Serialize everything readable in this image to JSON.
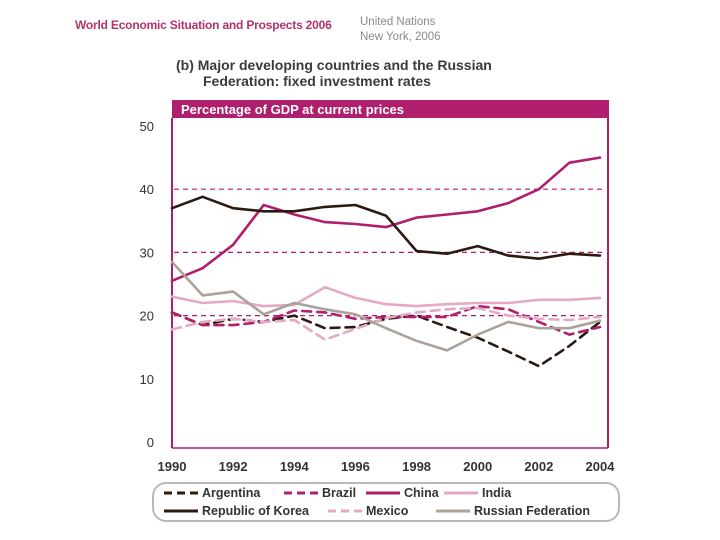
{
  "header": {
    "publication": "World Economic Situation and Prospects 2006",
    "org_line1": "United Nations",
    "org_line2": "New York, 2006"
  },
  "chart_data": {
    "type": "line",
    "title_line1": "(b) Major developing countries and the Russian",
    "title_line2": "Federation: fixed investment rates",
    "subtitle": "Percentage of GDP at current prices",
    "xlabel": "",
    "ylabel": "",
    "ylim": [
      0,
      50
    ],
    "xlim": [
      1990,
      2004
    ],
    "yticks": [
      "0",
      "10",
      "20",
      "30",
      "40",
      "50"
    ],
    "xticks": [
      "1990",
      "1992",
      "1994",
      "1996",
      "1998",
      "2000",
      "2002",
      "2004"
    ],
    "gridlines": [
      20,
      30,
      40
    ],
    "x": [
      1990,
      1991,
      1992,
      1993,
      1994,
      1995,
      1996,
      1997,
      1998,
      1999,
      2000,
      2001,
      2002,
      2003,
      2004
    ],
    "series": [
      {
        "name": "Argentina",
        "color": "#2b1a12",
        "style": "dashed",
        "values": [
          20.5,
          18.5,
          19.5,
          19.0,
          20.0,
          18.0,
          18.2,
          19.5,
          20.0,
          18.2,
          16.5,
          14.3,
          12.0,
          15.2,
          19.0
        ]
      },
      {
        "name": "Brazil",
        "color": "#b01e6e",
        "style": "dashed",
        "values": [
          20.5,
          18.5,
          18.5,
          19.0,
          20.8,
          20.5,
          19.5,
          19.8,
          19.8,
          19.8,
          21.5,
          21.0,
          19.0,
          17.0,
          18.2
        ]
      },
      {
        "name": "China",
        "color": "#b01e6e",
        "style": "solid",
        "values": [
          25.5,
          27.5,
          31.2,
          37.5,
          36.0,
          34.8,
          34.5,
          34.0,
          35.5,
          36.0,
          36.5,
          37.8,
          40.0,
          44.2,
          45.0
        ]
      },
      {
        "name": "India",
        "color": "#e6a9c4",
        "style": "solid",
        "values": [
          23.0,
          22.0,
          22.3,
          21.5,
          21.7,
          24.5,
          22.8,
          21.8,
          21.5,
          21.8,
          22.0,
          22.0,
          22.5,
          22.5,
          22.8
        ]
      },
      {
        "name": "Republic of Korea",
        "color": "#2b1a12",
        "style": "solid",
        "values": [
          37.0,
          38.8,
          37.0,
          36.5,
          36.5,
          37.2,
          37.5,
          35.8,
          30.2,
          29.8,
          31.0,
          29.5,
          29.0,
          29.8,
          29.5
        ]
      },
      {
        "name": "Mexico",
        "color": "#e6a9c4",
        "style": "dashed",
        "values": [
          17.8,
          19.0,
          19.5,
          19.0,
          19.3,
          16.2,
          17.9,
          19.6,
          20.5,
          21.0,
          21.2,
          20.0,
          19.5,
          19.3,
          19.8
        ]
      },
      {
        "name": "Russian Federation",
        "color": "#a9a399",
        "style": "solid",
        "values": [
          28.5,
          23.2,
          23.8,
          20.2,
          22.0,
          21.0,
          20.2,
          18.0,
          16.0,
          14.5,
          17.0,
          19.0,
          18.0,
          18.0,
          19.2
        ]
      }
    ],
    "legend_position": "bottom"
  }
}
